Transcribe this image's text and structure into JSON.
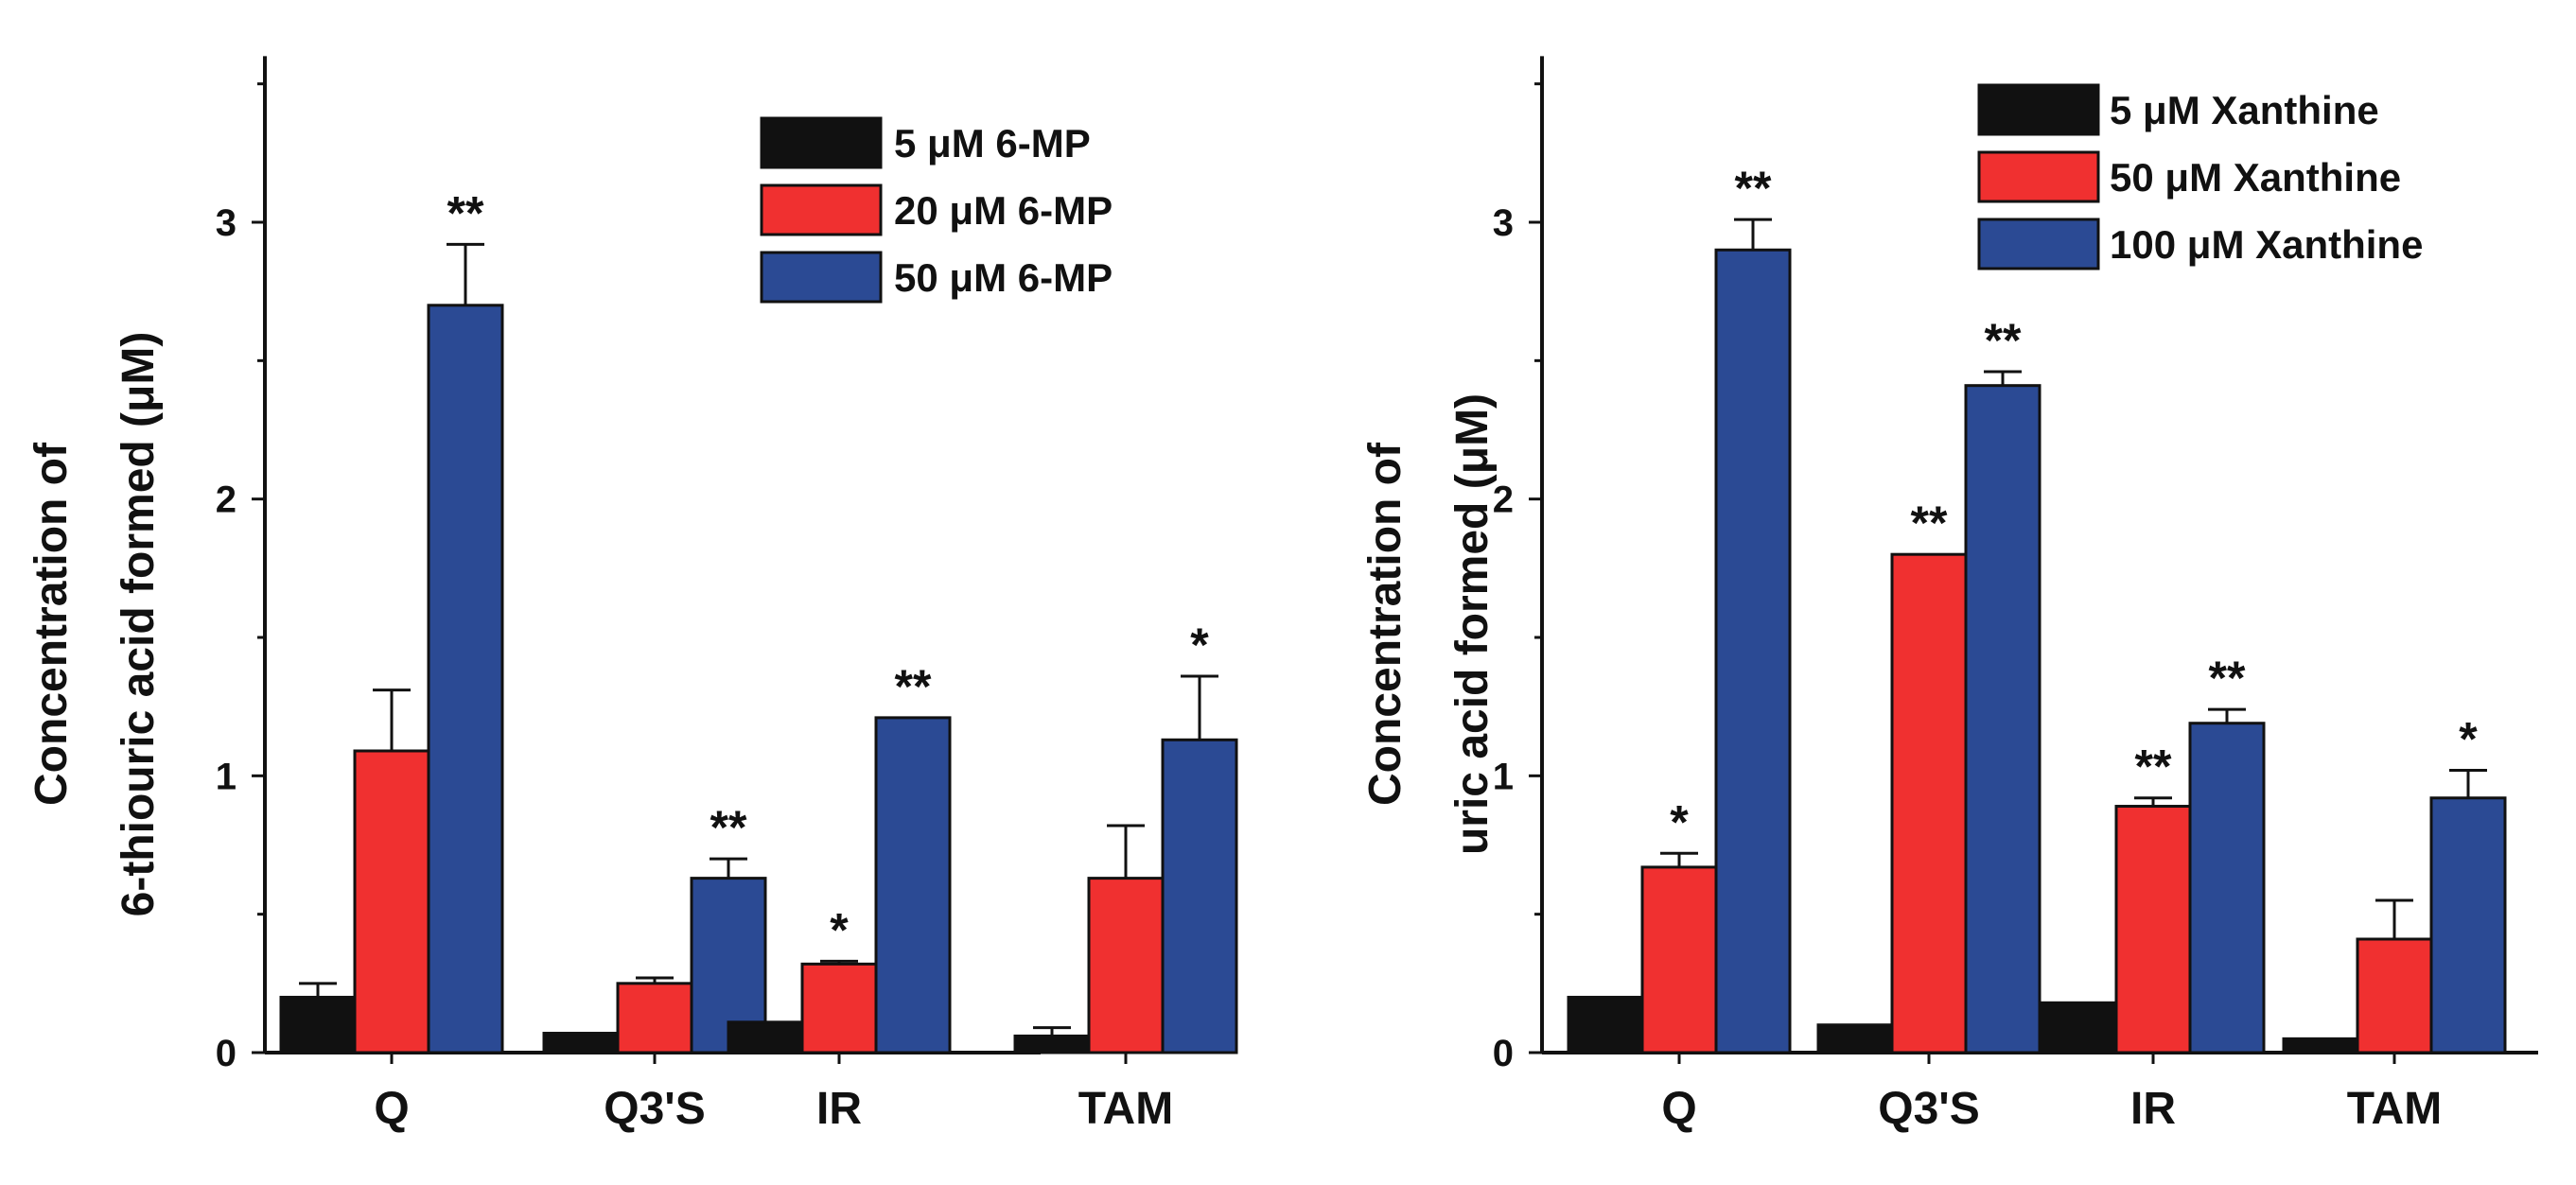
{
  "chart_data": [
    {
      "type": "bar",
      "categories": [
        "Q",
        "Q3'S",
        "IR",
        "TAM"
      ],
      "ylabel_lines": [
        "Concentration of",
        "6-thiouric acid formed (μM)"
      ],
      "ylim": [
        0,
        3.6
      ],
      "yticks": [
        "0",
        "1",
        "2",
        "3"
      ],
      "series": [
        {
          "name": "5 μM 6-MP",
          "color": "#111111",
          "values": [
            0.2,
            0.07,
            0.11,
            0.06
          ],
          "errors": [
            0.05,
            0.0,
            0.0,
            0.03
          ],
          "significance": [
            "",
            "",
            "",
            ""
          ]
        },
        {
          "name": "20 μM 6-MP",
          "color": "#f03030",
          "values": [
            1.09,
            0.25,
            0.32,
            0.63
          ],
          "errors": [
            0.22,
            0.02,
            0.01,
            0.19
          ],
          "significance": [
            "",
            "",
            "*",
            ""
          ]
        },
        {
          "name": "50 μM 6-MP",
          "color": "#2b4a94",
          "values": [
            2.7,
            0.63,
            1.21,
            1.13
          ],
          "errors": [
            0.22,
            0.07,
            0.0,
            0.23
          ],
          "significance": [
            "**",
            "**",
            "**",
            "*"
          ]
        }
      ]
    },
    {
      "type": "bar",
      "categories": [
        "Q",
        "Q3'S",
        "IR",
        "TAM"
      ],
      "ylabel_lines": [
        "Concentration of",
        "uric acid formed (μM)"
      ],
      "ylim": [
        0,
        3.6
      ],
      "yticks": [
        "0",
        "1",
        "2",
        "3"
      ],
      "series": [
        {
          "name": "5 μM Xanthine",
          "color": "#111111",
          "values": [
            0.2,
            0.1,
            0.18,
            0.05
          ],
          "errors": [
            0.0,
            0.0,
            0.0,
            0.0
          ],
          "significance": [
            "",
            "",
            "",
            ""
          ]
        },
        {
          "name": "50 μM Xanthine",
          "color": "#f03030",
          "values": [
            0.67,
            1.8,
            0.89,
            0.41
          ],
          "errors": [
            0.05,
            0.0,
            0.03,
            0.14
          ],
          "significance": [
            "*",
            "**",
            "**",
            ""
          ]
        },
        {
          "name": "100 μM Xanthine",
          "color": "#2b4a94",
          "values": [
            2.9,
            2.41,
            1.19,
            0.92
          ],
          "errors": [
            0.11,
            0.05,
            0.05,
            0.1
          ],
          "significance": [
            "**",
            "**",
            "**",
            "*"
          ]
        }
      ]
    }
  ]
}
